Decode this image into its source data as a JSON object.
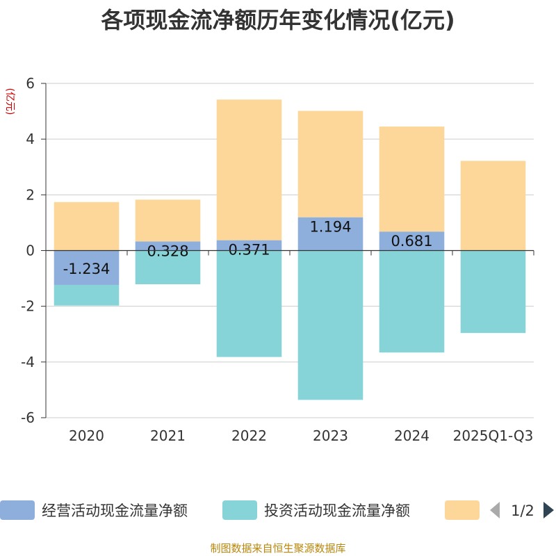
{
  "title": "各项现金流净额历年变化情况(亿元)",
  "footer": "制图数据来自恒生聚源数据库",
  "chart_data": {
    "type": "bar",
    "stacked": true,
    "title": "各项现金流净额历年变化情况(亿元)",
    "ylabel": "(亿元)",
    "xlabel": "",
    "categories": [
      "2020",
      "2021",
      "2022",
      "2023",
      "2024",
      "2025Q1-Q3"
    ],
    "ylim": [
      -6,
      6
    ],
    "yticks": [
      -6,
      -4,
      -2,
      0,
      2,
      4,
      6
    ],
    "grid": true,
    "series": [
      {
        "name": "经营活动现金流量净额",
        "color": "#8eaedb",
        "values": [
          -1.234,
          0.328,
          0.371,
          1.194,
          0.681,
          0
        ],
        "labels": [
          "-1.234",
          "0.328",
          "0.371",
          "1.194",
          "0.681",
          ""
        ]
      },
      {
        "name": "投资活动现金流量净额",
        "color": "#86d4d8",
        "values": [
          -0.74,
          -1.21,
          -3.82,
          -5.36,
          -3.66,
          -2.96
        ]
      },
      {
        "name": "",
        "color": "#fdd79a",
        "values": [
          1.74,
          1.5,
          5.05,
          3.82,
          3.77,
          3.22
        ]
      }
    ],
    "legend": {
      "position": "bottom",
      "page": "1/2"
    }
  }
}
